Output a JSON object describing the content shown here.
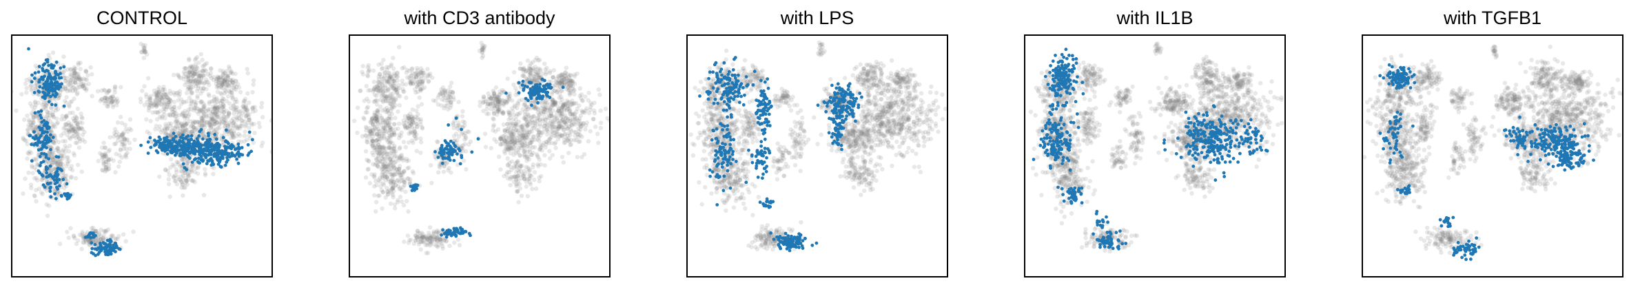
{
  "chart_data": [
    {
      "type": "scatter",
      "title": "CONTROL",
      "xlabel": "",
      "ylabel": "",
      "grid": false,
      "background_color": "#808080",
      "highlight_color": "#1f77b4",
      "highlighted_regions": [
        "left-column",
        "right-cluster",
        "bottom-island",
        "small-left-bottom"
      ]
    },
    {
      "type": "scatter",
      "title": "with CD3 antibody",
      "xlabel": "",
      "ylabel": "",
      "grid": false,
      "background_color": "#808080",
      "highlight_color": "#1f77b4",
      "highlighted_regions": [
        "top-right-blob",
        "center-cluster",
        "bottom-island-top",
        "small-left-bottom"
      ]
    },
    {
      "type": "scatter",
      "title": "with LPS",
      "xlabel": "",
      "ylabel": "",
      "grid": false,
      "background_color": "#808080",
      "highlight_color": "#1f77b4",
      "highlighted_regions": [
        "left-column",
        "center-upper-blob",
        "bottom-island",
        "small-left-bottom"
      ]
    },
    {
      "type": "scatter",
      "title": "with IL1B",
      "xlabel": "",
      "ylabel": "",
      "grid": false,
      "background_color": "#808080",
      "highlight_color": "#1f77b4",
      "highlighted_regions": [
        "left-column",
        "right-cluster",
        "bottom-island",
        "small-left-bottom"
      ]
    },
    {
      "type": "scatter",
      "title": "with TGFB1",
      "xlabel": "",
      "ylabel": "",
      "grid": false,
      "background_color": "#808080",
      "highlight_color": "#1f77b4",
      "highlighted_regions": [
        "left-column-top",
        "right-cluster-lower",
        "bottom-island-lower",
        "small-left-bottom"
      ]
    }
  ]
}
